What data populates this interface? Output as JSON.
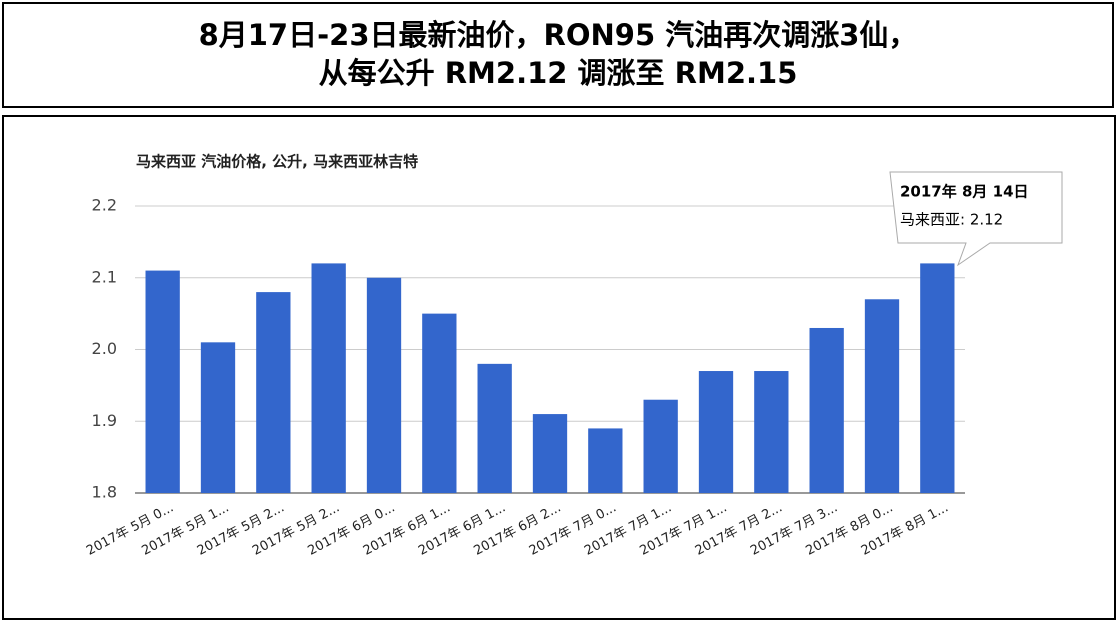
{
  "header": {
    "lines": [
      "8月17日-23日最新油价，RON95 汽油再次调涨3仙，",
      "从每公升 RM2.12 调涨至 RM2.15"
    ]
  },
  "chart_data": {
    "type": "bar",
    "title": "马来西亚 汽油价格, 公升, 马来西亚林吉特",
    "categories": [
      "2017年 5月 0...",
      "2017年 5月 1...",
      "2017年 5月 2...",
      "2017年 5月 2...",
      "2017年 6月 0...",
      "2017年 6月 1...",
      "2017年 6月 1...",
      "2017年 6月 2...",
      "2017年 7月 0...",
      "2017年 7月 1...",
      "2017年 7月 1...",
      "2017年 7月 2...",
      "2017年 7月 3...",
      "2017年 8月 0...",
      "2017年 8月 1..."
    ],
    "series": [
      {
        "name": "马来西亚",
        "color": "#3366cc",
        "values": [
          2.11,
          2.01,
          2.08,
          2.12,
          2.1,
          2.05,
          1.98,
          1.91,
          1.89,
          1.93,
          1.97,
          1.97,
          2.03,
          2.07,
          2.12
        ]
      }
    ],
    "ylim": [
      1.8,
      2.2
    ],
    "yticks": [
      1.8,
      1.9,
      {
        "value": 2,
        "label": "2.0"
      },
      2.1,
      2.2
    ],
    "grid": true,
    "tooltip": {
      "date": "2017年 8月 14日",
      "text": "马来西亚: 2.12"
    }
  }
}
